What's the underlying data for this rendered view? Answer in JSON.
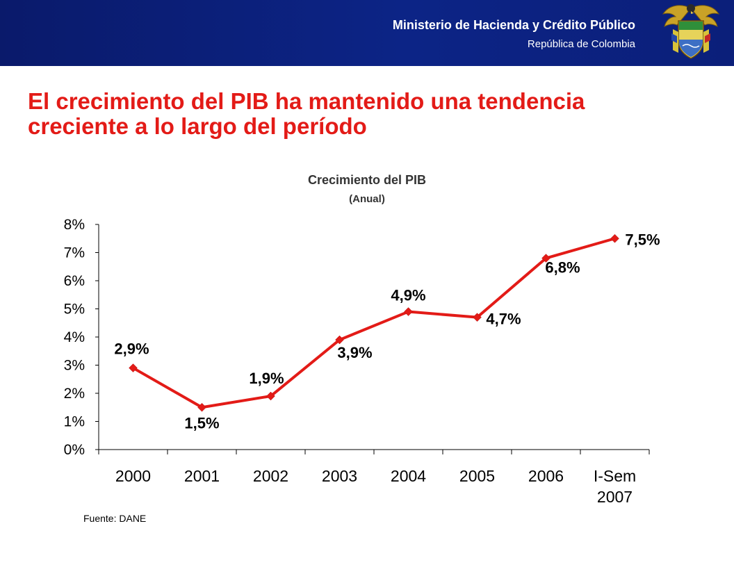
{
  "header": {
    "org": "Ministerio de Hacienda y Crédito Público",
    "country": "República de Colombia",
    "logo_icon": "colombia-coat-of-arms-icon",
    "bg_color": "#0c2486"
  },
  "slide": {
    "title_line1": "El crecimiento del PIB ha mantenido una tendencia",
    "title_line2": "creciente a lo largo del período",
    "title_color": "#e31b17"
  },
  "chart_data": {
    "type": "line",
    "title": "Crecimiento del PIB",
    "subtitle": "(Anual)",
    "xlabel": "",
    "ylabel": "",
    "categories": [
      "2000",
      "2001",
      "2002",
      "2003",
      "2004",
      "2005",
      "2006",
      "I-Sem 2007"
    ],
    "series": [
      {
        "values": [
          2.9,
          1.5,
          1.9,
          3.9,
          4.9,
          4.7,
          6.8,
          7.5
        ],
        "labels": [
          "2,9%",
          "1,5%",
          "1,9%",
          "3,9%",
          "4,9%",
          "4,7%",
          "6,8%",
          "7,5%"
        ],
        "color": "#e31b17"
      }
    ],
    "ylim": [
      0,
      8
    ],
    "yticks": [
      "0%",
      "1%",
      "2%",
      "3%",
      "4%",
      "5%",
      "6%",
      "7%",
      "8%"
    ],
    "grid": false,
    "legend": "none"
  },
  "footer": {
    "source": "Fuente: DANE"
  }
}
